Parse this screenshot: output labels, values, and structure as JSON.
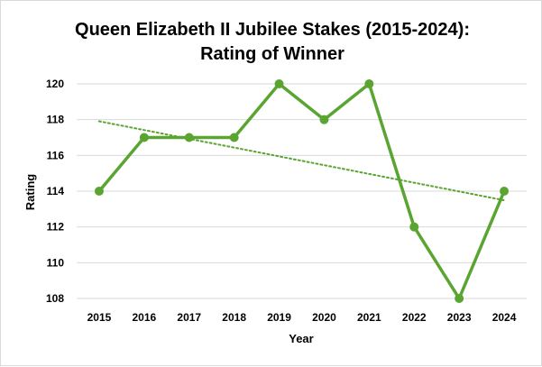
{
  "chart_data": {
    "type": "line",
    "title_lines": [
      "Queen Elizabeth II Jubilee Stakes (2015-2024):",
      "Rating of Winner"
    ],
    "xlabel": "Year",
    "ylabel": "Rating",
    "x": [
      "2015",
      "2016",
      "2017",
      "2018",
      "2019",
      "2020",
      "2021",
      "2022",
      "2023",
      "2024"
    ],
    "series": [
      {
        "values": [
          114,
          117,
          117,
          117,
          120,
          118,
          120,
          112,
          108,
          114
        ],
        "color": "#5aa532"
      }
    ],
    "trendline": {
      "type": "linear",
      "style": "dotted",
      "color": "#5aa532"
    },
    "y_ticks": [
      108,
      110,
      112,
      114,
      116,
      118,
      120
    ],
    "ylim": [
      108,
      120
    ],
    "grid": true,
    "gridline_color": "#d9d9d9",
    "legend": "none"
  }
}
